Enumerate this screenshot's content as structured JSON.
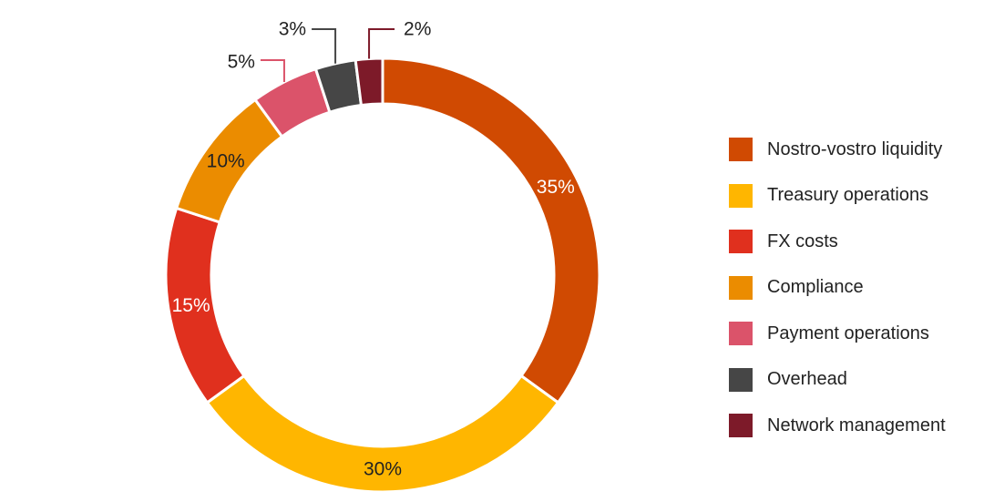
{
  "chart_data": {
    "type": "pie",
    "donut": true,
    "title": "",
    "categories": [
      "Nostro-vostro liquidity",
      "Treasury operations",
      "FX costs",
      "Compliance",
      "Payment operations",
      "Overhead",
      "Network management"
    ],
    "values": [
      35,
      30,
      15,
      10,
      5,
      3,
      2
    ],
    "value_labels": [
      "35%",
      "30%",
      "15%",
      "10%",
      "5%",
      "3%",
      "2%"
    ],
    "colors": [
      "#D04A02",
      "#FFB600",
      "#E0301E",
      "#EB8C00",
      "#DB536A",
      "#464646",
      "#7D1A29"
    ],
    "label_colors": [
      "#ffffff",
      "#222222",
      "#ffffff",
      "#222222",
      "#222222",
      "#222222",
      "#222222"
    ],
    "legend_placement": "right",
    "grid": false
  }
}
